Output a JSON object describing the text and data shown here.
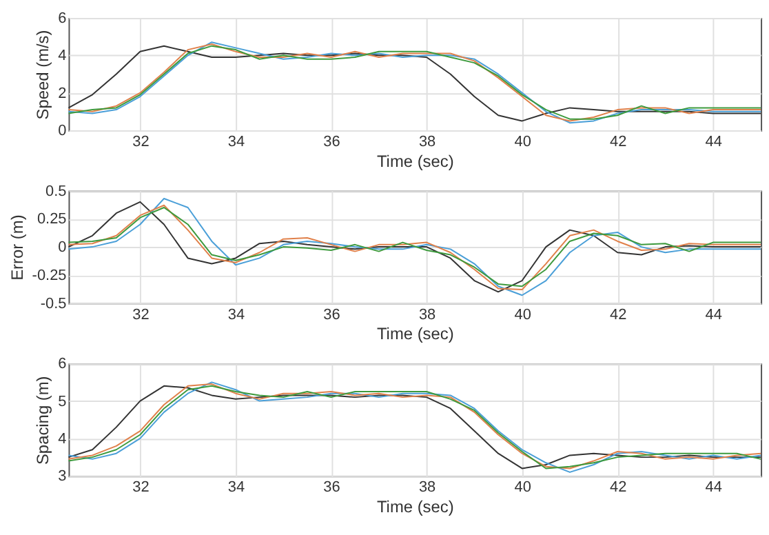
{
  "chart_data": [
    {
      "type": "line",
      "xlabel": "Time (sec)",
      "ylabel": "Speed (m/s)",
      "xlim": [
        30.5,
        45
      ],
      "ylim": [
        0,
        6
      ],
      "xticks": [
        32,
        34,
        36,
        38,
        40,
        42,
        44
      ],
      "yticks": [
        0,
        2,
        4,
        6
      ],
      "grid": true,
      "legend": false,
      "line_style": "solid",
      "marker": "none",
      "x": [
        30.5,
        31,
        31.5,
        32,
        32.5,
        33,
        33.5,
        34,
        34.5,
        35,
        35.5,
        36,
        36.5,
        37,
        37.5,
        38,
        38.5,
        39,
        39.5,
        40,
        40.5,
        41,
        41.5,
        42,
        42.5,
        43,
        43.5,
        44,
        44.5,
        45
      ],
      "series": [
        {
          "color": "#333333",
          "values": [
            1.2,
            1.9,
            3.0,
            4.2,
            4.5,
            4.2,
            3.9,
            3.9,
            4.0,
            4.1,
            4.0,
            4.0,
            4.1,
            4.0,
            4.0,
            3.9,
            3.0,
            1.8,
            0.8,
            0.5,
            0.9,
            1.2,
            1.1,
            1.0,
            1.0,
            1.0,
            1.0,
            0.9,
            0.9,
            0.9
          ]
        },
        {
          "color": "#4a9fd8",
          "values": [
            1.0,
            0.9,
            1.1,
            1.8,
            2.9,
            4.0,
            4.7,
            4.4,
            4.1,
            3.8,
            3.9,
            4.1,
            4.0,
            4.1,
            3.9,
            4.0,
            4.0,
            3.8,
            3.0,
            2.0,
            1.0,
            0.4,
            0.5,
            0.9,
            1.1,
            1.1,
            1.1,
            1.0,
            1.0,
            1.0
          ]
        },
        {
          "color": "#e0804a",
          "values": [
            1.1,
            1.0,
            1.3,
            2.0,
            3.1,
            4.3,
            4.6,
            4.2,
            3.9,
            3.9,
            4.1,
            3.9,
            4.2,
            3.9,
            4.1,
            4.1,
            4.1,
            3.7,
            2.8,
            1.8,
            0.8,
            0.5,
            0.7,
            1.1,
            1.2,
            1.2,
            0.9,
            1.1,
            1.1,
            1.1
          ]
        },
        {
          "color": "#3d9a3d",
          "values": [
            0.9,
            1.1,
            1.2,
            1.9,
            3.0,
            4.1,
            4.5,
            4.3,
            3.8,
            4.0,
            3.8,
            3.8,
            3.9,
            4.2,
            4.2,
            4.2,
            3.9,
            3.6,
            2.9,
            1.9,
            1.1,
            0.6,
            0.6,
            0.8,
            1.3,
            0.9,
            1.2,
            1.2,
            1.2,
            1.2
          ]
        }
      ]
    },
    {
      "type": "line",
      "xlabel": "Time (sec)",
      "ylabel": "Error (m)",
      "xlim": [
        30.5,
        45
      ],
      "ylim": [
        -0.5,
        0.5
      ],
      "xticks": [
        32,
        34,
        36,
        38,
        40,
        42,
        44
      ],
      "yticks": [
        -0.5,
        -0.25,
        0,
        0.25,
        0.5
      ],
      "grid": true,
      "legend": false,
      "line_style": "solid",
      "marker": "none",
      "x": [
        30.5,
        31,
        31.5,
        32,
        32.5,
        33,
        33.5,
        34,
        34.5,
        35,
        35.5,
        36,
        36.5,
        37,
        37.5,
        38,
        38.5,
        39,
        39.5,
        40,
        40.5,
        41,
        41.5,
        42,
        42.5,
        43,
        43.5,
        44,
        44.5,
        45
      ],
      "series": [
        {
          "color": "#333333",
          "values": [
            0,
            0.1,
            0.3,
            0.4,
            0.2,
            -0.1,
            -0.15,
            -0.1,
            0.03,
            0.05,
            0.02,
            0,
            -0.02,
            0,
            0,
            0,
            -0.1,
            -0.3,
            -0.4,
            -0.3,
            0,
            0.15,
            0.1,
            -0.05,
            -0.07,
            0,
            0.01,
            0,
            0,
            0
          ]
        },
        {
          "color": "#4a9fd8",
          "values": [
            -0.02,
            0,
            0.05,
            0.2,
            0.43,
            0.35,
            0.05,
            -0.16,
            -0.1,
            0.02,
            0.05,
            0.03,
            0,
            -0.02,
            -0.02,
            0.02,
            -0.02,
            -0.15,
            -0.35,
            -0.43,
            -0.3,
            -0.05,
            0.1,
            0.13,
            0,
            -0.05,
            -0.02,
            -0.02,
            -0.02,
            -0.02
          ]
        },
        {
          "color": "#e0804a",
          "values": [
            0.02,
            0.03,
            0.1,
            0.28,
            0.37,
            0.15,
            -0.1,
            -0.14,
            -0.05,
            0.07,
            0.08,
            0.02,
            -0.04,
            0.02,
            0.02,
            0.04,
            -0.05,
            -0.2,
            -0.37,
            -0.38,
            -0.15,
            0.1,
            0.15,
            0.05,
            -0.03,
            -0.02,
            0.03,
            0.02,
            0.02,
            0.02
          ]
        },
        {
          "color": "#3d9a3d",
          "values": [
            0.04,
            0.05,
            0.08,
            0.26,
            0.35,
            0.2,
            -0.07,
            -0.12,
            -0.07,
            0,
            -0.01,
            -0.03,
            0.02,
            -0.04,
            0.04,
            -0.03,
            -0.07,
            -0.18,
            -0.33,
            -0.35,
            -0.2,
            0.05,
            0.12,
            0.1,
            0.02,
            0.03,
            -0.04,
            0.04,
            0.04,
            0.04
          ]
        }
      ]
    },
    {
      "type": "line",
      "xlabel": "Time (sec)",
      "ylabel": "Spacing (m)",
      "xlim": [
        30.5,
        45
      ],
      "ylim": [
        3,
        6
      ],
      "xticks": [
        32,
        34,
        36,
        38,
        40,
        42,
        44
      ],
      "yticks": [
        3,
        4,
        5,
        6
      ],
      "grid": true,
      "legend": false,
      "line_style": "solid",
      "marker": "none",
      "x": [
        30.5,
        31,
        31.5,
        32,
        32.5,
        33,
        33.5,
        34,
        34.5,
        35,
        35.5,
        36,
        36.5,
        37,
        37.5,
        38,
        38.5,
        39,
        39.5,
        40,
        40.5,
        41,
        41.5,
        42,
        42.5,
        43,
        43.5,
        44,
        44.5,
        45
      ],
      "series": [
        {
          "color": "#333333",
          "values": [
            3.5,
            3.7,
            4.3,
            5.0,
            5.4,
            5.35,
            5.15,
            5.05,
            5.1,
            5.15,
            5.15,
            5.15,
            5.1,
            5.15,
            5.15,
            5.1,
            4.8,
            4.2,
            3.6,
            3.2,
            3.3,
            3.55,
            3.6,
            3.55,
            3.5,
            3.5,
            3.55,
            3.5,
            3.5,
            3.5
          ]
        },
        {
          "color": "#4a9fd8",
          "values": [
            3.55,
            3.45,
            3.6,
            4.0,
            4.7,
            5.2,
            5.5,
            5.3,
            5.0,
            5.05,
            5.1,
            5.2,
            5.2,
            5.1,
            5.2,
            5.2,
            5.15,
            4.8,
            4.2,
            3.7,
            3.35,
            3.1,
            3.3,
            3.6,
            3.65,
            3.55,
            3.45,
            3.55,
            3.45,
            3.55
          ]
        },
        {
          "color": "#e0804a",
          "values": [
            3.45,
            3.55,
            3.8,
            4.2,
            4.9,
            5.4,
            5.45,
            5.2,
            5.05,
            5.2,
            5.2,
            5.25,
            5.15,
            5.2,
            5.1,
            5.15,
            5.1,
            4.7,
            4.1,
            3.6,
            3.25,
            3.2,
            3.4,
            3.65,
            3.6,
            3.45,
            3.5,
            3.45,
            3.55,
            3.6
          ]
        },
        {
          "color": "#3d9a3d",
          "values": [
            3.4,
            3.5,
            3.7,
            4.1,
            4.8,
            5.3,
            5.4,
            5.25,
            5.15,
            5.1,
            5.25,
            5.1,
            5.25,
            5.25,
            5.25,
            5.25,
            5.05,
            4.75,
            4.15,
            3.65,
            3.2,
            3.25,
            3.35,
            3.5,
            3.55,
            3.6,
            3.6,
            3.6,
            3.6,
            3.45
          ]
        }
      ]
    }
  ]
}
